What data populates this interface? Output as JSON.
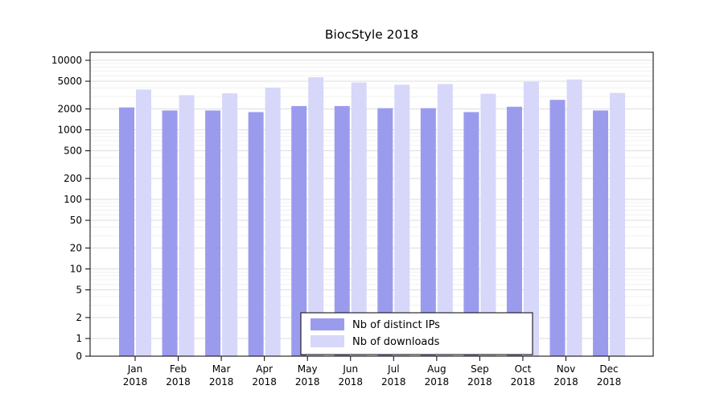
{
  "title": "BiocStyle 2018",
  "chart_data": {
    "type": "bar",
    "title": "BiocStyle 2018",
    "y_scale": "log",
    "ylim": [
      0,
      10000
    ],
    "grid": true,
    "legend_position": "bottom-center-inside",
    "y_ticks": [
      0,
      1,
      2,
      5,
      10,
      20,
      50,
      100,
      200,
      500,
      1000,
      2000,
      5000,
      10000
    ],
    "categories": [
      "Jan",
      "Feb",
      "Mar",
      "Apr",
      "May",
      "Jun",
      "Jul",
      "Aug",
      "Sep",
      "Oct",
      "Nov",
      "Dec"
    ],
    "category_year": "2018",
    "series": [
      {
        "name": "Nb of distinct IPs",
        "color": "#9b9bee",
        "values": [
          2100,
          1900,
          1900,
          1800,
          2200,
          2200,
          2050,
          2050,
          1800,
          2150,
          2700,
          1900
        ]
      },
      {
        "name": "Nb of downloads",
        "color": "#d7d7f9",
        "values": [
          3800,
          3150,
          3350,
          4050,
          5700,
          4800,
          4450,
          4550,
          3300,
          4900,
          5300,
          3400
        ]
      }
    ]
  }
}
